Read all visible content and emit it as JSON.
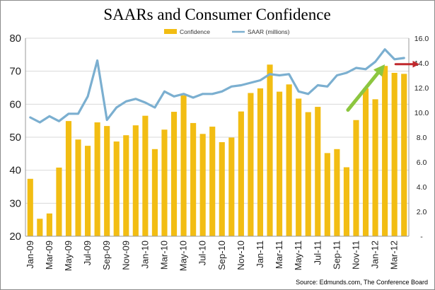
{
  "chart_data": {
    "type": "bar+line",
    "title": "SAARs and Consumer Confidence",
    "categories": [
      "Jan-09",
      "Feb-09",
      "Mar-09",
      "Apr-09",
      "May-09",
      "Jun-09",
      "Jul-09",
      "Aug-09",
      "Sep-09",
      "Oct-09",
      "Nov-09",
      "Dec-09",
      "Jan-10",
      "Feb-10",
      "Mar-10",
      "Apr-10",
      "May-10",
      "Jun-10",
      "Jul-10",
      "Aug-10",
      "Sep-10",
      "Oct-10",
      "Nov-10",
      "Dec-10",
      "Jan-11",
      "Feb-11",
      "Mar-11",
      "Apr-11",
      "May-11",
      "Jun-11",
      "Jul-11",
      "Aug-11",
      "Sep-11",
      "Oct-11",
      "Nov-11",
      "Dec-11",
      "Jan-12",
      "Feb-12",
      "Mar-12",
      "Apr-12"
    ],
    "x_tick_labels": [
      "Jan-09",
      "Mar-09",
      "May-09",
      "Jul-09",
      "Sep-09",
      "Nov-09",
      "Jan-10",
      "Mar-10",
      "May-10",
      "Jul-10",
      "Sep-10",
      "Nov-10",
      "Jan-11",
      "Mar-11",
      "May-11",
      "Jul-11",
      "Sep-11",
      "Nov-11",
      "Jan-12",
      "Mar-12"
    ],
    "series": [
      {
        "name": "Confidence",
        "type": "bar",
        "axis": "left",
        "color": "#f2bd13",
        "values": [
          37.4,
          25.3,
          26.9,
          40.8,
          54.9,
          49.3,
          47.4,
          54.5,
          53.4,
          48.7,
          50.6,
          53.6,
          56.5,
          46.4,
          52.3,
          57.7,
          62.7,
          54.3,
          51.0,
          53.2,
          48.5,
          49.9,
          57.8,
          63.4,
          64.8,
          72.0,
          63.8,
          66.0,
          61.7,
          57.6,
          59.2,
          45.2,
          46.4,
          40.9,
          55.2,
          64.8,
          61.5,
          71.6,
          69.5,
          69.2
        ]
      },
      {
        "name": "SAAR (millions)",
        "type": "line",
        "axis": "right",
        "color": "#7bafd0",
        "values": [
          9.6,
          9.2,
          9.7,
          9.3,
          9.9,
          9.9,
          11.3,
          14.2,
          9.4,
          10.4,
          10.9,
          11.1,
          10.8,
          10.4,
          11.7,
          11.3,
          11.5,
          11.2,
          11.5,
          11.5,
          11.7,
          12.1,
          12.2,
          12.4,
          12.6,
          13.1,
          13.0,
          13.1,
          11.7,
          11.5,
          12.2,
          12.1,
          13.0,
          13.2,
          13.6,
          13.5,
          14.1,
          15.1,
          14.3,
          14.4
        ]
      }
    ],
    "y_left": {
      "min": 20,
      "max": 80,
      "ticks": [
        "20",
        "30",
        "40",
        "50",
        "60",
        "70",
        "80"
      ]
    },
    "y_right": {
      "min": 0,
      "max": 16,
      "ticks": [
        "-",
        "2.0",
        "4.0",
        "6.0",
        "8.0",
        "10.0",
        "12.0",
        "14.0",
        "16.0"
      ]
    },
    "grid": "horizontal",
    "legend": {
      "placement": "top-center",
      "items": [
        "Confidence",
        "SAAR (millions)"
      ]
    },
    "annotations": [
      {
        "name": "green-up-arrow",
        "color": "#8cc63f",
        "from_category": "Oct-11",
        "to_category": "Feb-12",
        "from_value_right": 10.2,
        "to_value_right": 13.6
      },
      {
        "name": "red-right-arrow",
        "color": "#c0282d",
        "from_category": "Apr-12",
        "to_category": "Apr-12",
        "value_right": 13.9
      }
    ],
    "source": "Source: Edmunds.com, The Conference Board"
  }
}
